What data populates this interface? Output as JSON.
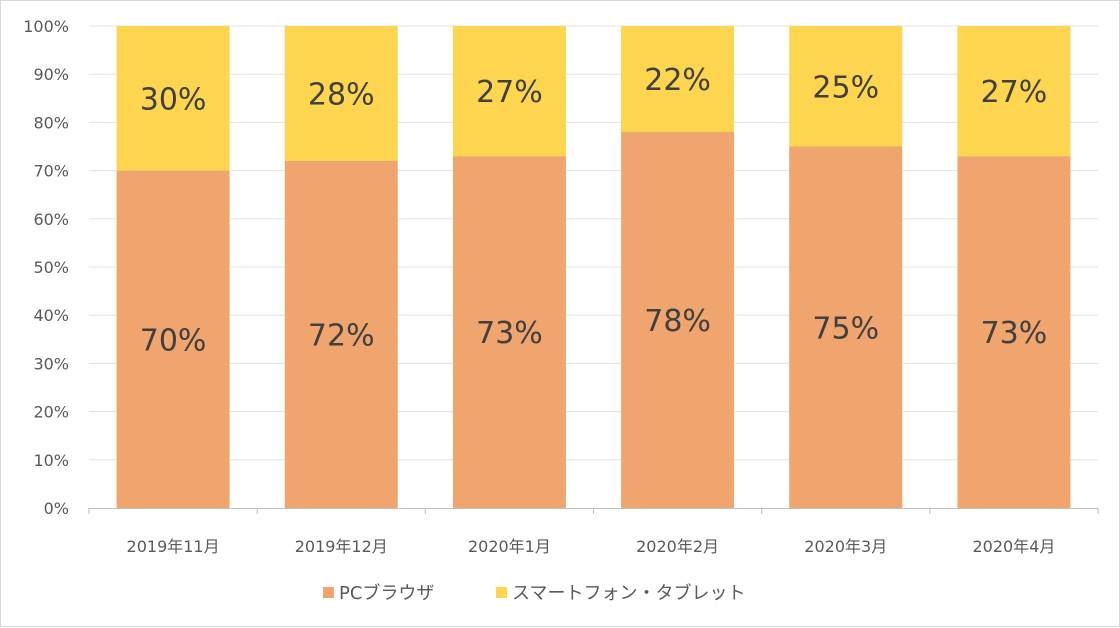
{
  "chart_data": {
    "type": "bar",
    "stacked": true,
    "categories": [
      "2019年11月",
      "2019年12月",
      "2020年1月",
      "2020年2月",
      "2020年3月",
      "2020年4月"
    ],
    "series": [
      {
        "name": "PCブラウザ",
        "color": "#F0A46E",
        "values": [
          70,
          72,
          73,
          78,
          75,
          73
        ],
        "labels": [
          "70%",
          "72%",
          "73%",
          "78%",
          "75%",
          "73%"
        ]
      },
      {
        "name": "スマートフォン・タブレット",
        "color": "#FDD54F",
        "values": [
          30,
          28,
          27,
          22,
          25,
          27
        ],
        "labels": [
          "30%",
          "28%",
          "27%",
          "22%",
          "25%",
          "27%"
        ]
      }
    ],
    "ylim": [
      0,
      100
    ],
    "yticks": [
      "0%",
      "10%",
      "20%",
      "30%",
      "40%",
      "50%",
      "60%",
      "70%",
      "80%",
      "90%",
      "100%"
    ],
    "grid": true,
    "legend": "bottom"
  }
}
